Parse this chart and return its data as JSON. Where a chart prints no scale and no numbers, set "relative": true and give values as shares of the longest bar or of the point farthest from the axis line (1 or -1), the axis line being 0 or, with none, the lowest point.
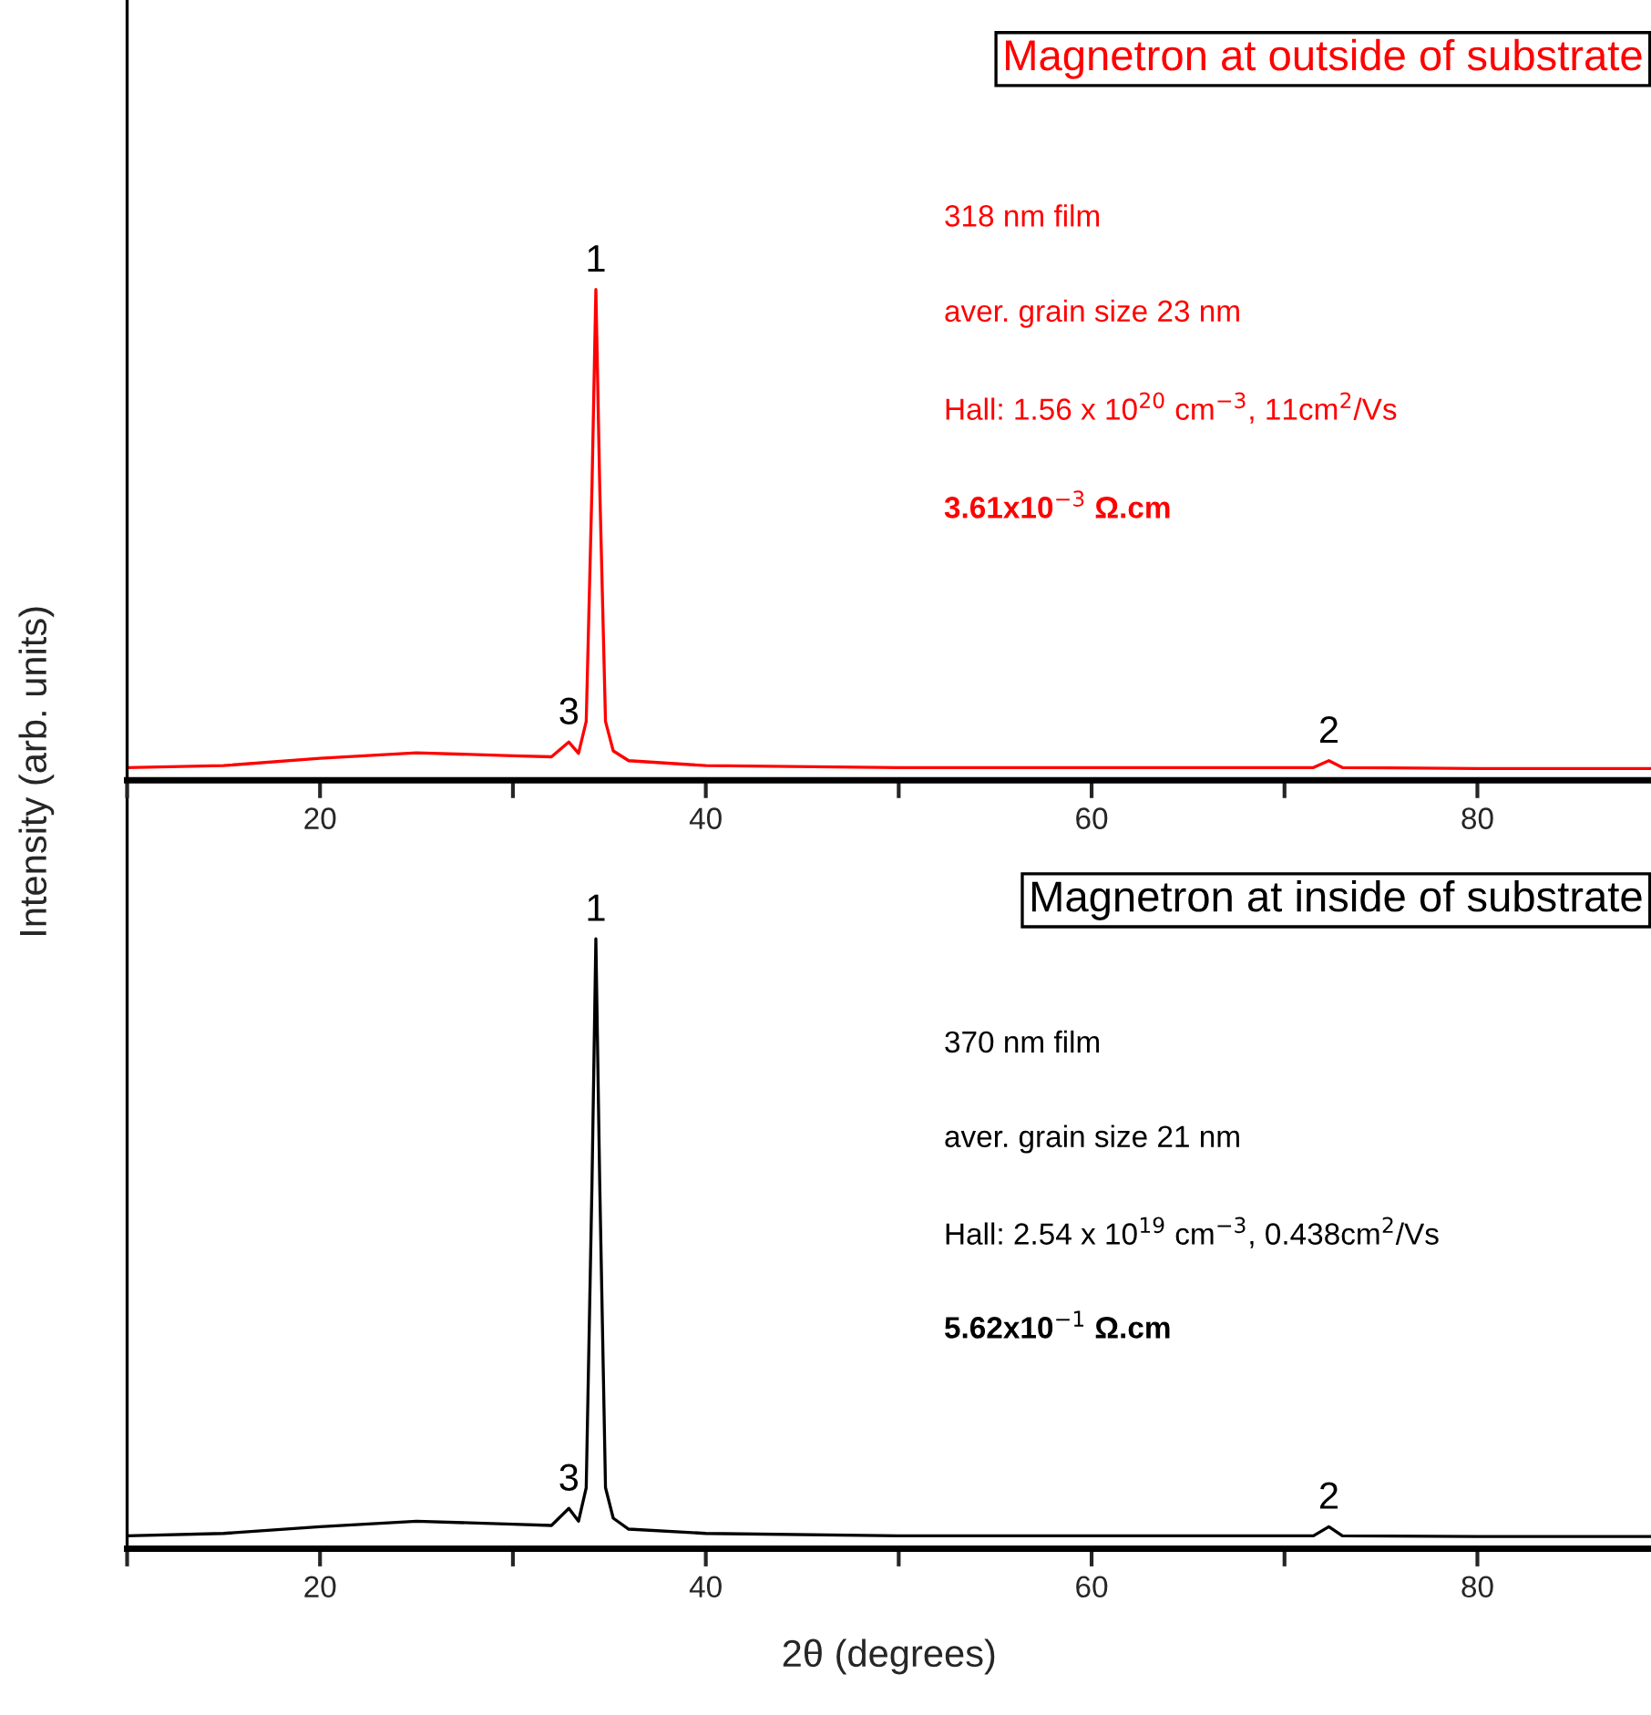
{
  "chart_data": [
    {
      "type": "line",
      "relative": true,
      "title": "Magnetron at outside of substrate",
      "ylabel": "Intensity (arb. units)",
      "xlim": [
        10,
        89
      ],
      "xticks": [
        {
          "value": 10,
          "label": null
        },
        20,
        {
          "value": 30,
          "label": null
        },
        40,
        {
          "value": 50,
          "label": null
        },
        60,
        {
          "value": 70,
          "label": null
        },
        80
      ],
      "series": [
        {
          "color": "#ff0000",
          "x": [
            10,
            15,
            20,
            25,
            30,
            32,
            32.9,
            33.4,
            33.8,
            34.1,
            34.3,
            34.5,
            34.8,
            35.2,
            36,
            40,
            50,
            60,
            71.5,
            72.3,
            73,
            80,
            89
          ],
          "values": [
            0.026,
            0.03,
            0.045,
            0.056,
            0.05,
            0.048,
            0.078,
            0.055,
            0.12,
            0.6,
            1.0,
            0.6,
            0.12,
            0.06,
            0.04,
            0.03,
            0.026,
            0.026,
            0.026,
            0.04,
            0.026,
            0.024,
            0.024
          ]
        }
      ],
      "annotations": [
        {
          "text": "1",
          "x": 34.3,
          "y": 1.0
        },
        {
          "text": "3",
          "x": 32.9,
          "y": 0.078
        },
        {
          "text": "2",
          "x": 72.3,
          "y": 0.04
        },
        "318 nm film",
        "aver. grain size 23 nm",
        "Hall: 1.56 x 10$^{20}$ cm$^{−3}$, 11cm$^{2}$/Vs",
        "3.61x10$^{−3}$ Ω.cm"
      ]
    },
    {
      "type": "line",
      "relative": true,
      "title": "Magnetron at inside of substrate",
      "xlabel": "2θ (degrees)",
      "xlim": [
        10,
        89
      ],
      "xticks": [
        {
          "value": 10,
          "label": null
        },
        20,
        {
          "value": 30,
          "label": null
        },
        40,
        {
          "value": 50,
          "label": null
        },
        60,
        {
          "value": 70,
          "label": null
        },
        80
      ],
      "series": [
        {
          "color": "#000000",
          "x": [
            10,
            15,
            20,
            25,
            30,
            32,
            32.9,
            33.4,
            33.8,
            34.1,
            34.3,
            34.5,
            34.8,
            35.2,
            36,
            40,
            50,
            60,
            71.5,
            72.3,
            73,
            80,
            89
          ],
          "values": [
            0.021,
            0.025,
            0.036,
            0.045,
            0.04,
            0.038,
            0.066,
            0.045,
            0.1,
            0.6,
            1.0,
            0.6,
            0.1,
            0.05,
            0.032,
            0.025,
            0.021,
            0.021,
            0.021,
            0.036,
            0.021,
            0.02,
            0.02
          ]
        }
      ],
      "annotations": [
        {
          "text": "1",
          "x": 34.3,
          "y": 1.0
        },
        {
          "text": "3",
          "x": 32.9,
          "y": 0.066
        },
        {
          "text": "2",
          "x": 72.3,
          "y": 0.036
        },
        "370 nm film",
        "aver. grain size 21 nm",
        "Hall: 2.54 x 10$^{19}$ cm$^{−3}$, 0.438cm$^{2}$/Vs",
        "5.62x10$^{−1}$ Ω.cm"
      ]
    }
  ]
}
